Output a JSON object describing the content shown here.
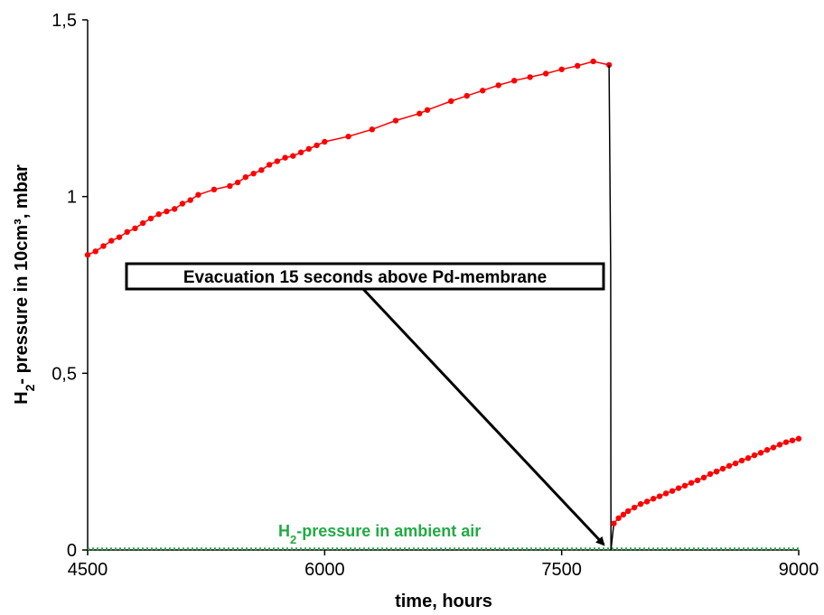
{
  "chart_data": {
    "type": "line",
    "xlabel": "time, hours",
    "ylabel_parts": [
      "H",
      "2",
      "- pressure in 10cm³, mbar"
    ],
    "xlim": [
      4500,
      9000
    ],
    "ylim": [
      0,
      1.5
    ],
    "x_ticks": [
      4500,
      6000,
      7500,
      9000
    ],
    "x_tick_labels": [
      "4500",
      "6000",
      "7500",
      "9000"
    ],
    "y_ticks": [
      0,
      0.5,
      1,
      1.5
    ],
    "y_tick_labels": [
      "0",
      "0,5",
      "1",
      "1,5"
    ],
    "grid": false,
    "colors": {
      "measured": "#ff0000",
      "drop_line": "#000000",
      "ambient": "#22aa44"
    },
    "series": [
      {
        "key": "before",
        "x": [
          4500,
          4550,
          4600,
          4650,
          4700,
          4750,
          4800,
          4850,
          4900,
          4950,
          5000,
          5050,
          5100,
          5150,
          5200,
          5300,
          5400,
          5450,
          5500,
          5550,
          5600,
          5650,
          5700,
          5750,
          5800,
          5850,
          5900,
          5950,
          6000,
          6150,
          6300,
          6450,
          6600,
          6650,
          6800,
          6900,
          7000,
          7100,
          7200,
          7300,
          7400,
          7500,
          7600,
          7700,
          7800
        ],
        "y": [
          0.835,
          0.845,
          0.86,
          0.875,
          0.885,
          0.9,
          0.91,
          0.925,
          0.938,
          0.95,
          0.958,
          0.965,
          0.98,
          0.99,
          1.005,
          1.02,
          1.03,
          1.04,
          1.055,
          1.065,
          1.075,
          1.09,
          1.1,
          1.11,
          1.115,
          1.125,
          1.135,
          1.145,
          1.155,
          1.17,
          1.19,
          1.215,
          1.235,
          1.245,
          1.27,
          1.285,
          1.3,
          1.315,
          1.328,
          1.338,
          1.348,
          1.36,
          1.37,
          1.3825,
          1.3725
        ]
      },
      {
        "key": "drop",
        "x": [
          7800,
          7810,
          7812,
          7830
        ],
        "y": [
          1.3725,
          0.8,
          0.0,
          0.075
        ]
      },
      {
        "key": "after",
        "x": [
          7830,
          7860,
          7890,
          7920,
          7960,
          8000,
          8040,
          8080,
          8120,
          8160,
          8200,
          8240,
          8280,
          8320,
          8360,
          8400,
          8440,
          8480,
          8520,
          8560,
          8600,
          8640,
          8680,
          8720,
          8760,
          8800,
          8840,
          8880,
          8920,
          8960,
          9000
        ],
        "y": [
          0.075,
          0.09,
          0.1,
          0.11,
          0.12,
          0.13,
          0.137,
          0.145,
          0.152,
          0.16,
          0.167,
          0.175,
          0.182,
          0.19,
          0.197,
          0.205,
          0.215,
          0.222,
          0.23,
          0.238,
          0.245,
          0.253,
          0.26,
          0.268,
          0.275,
          0.283,
          0.29,
          0.298,
          0.305,
          0.31,
          0.315
        ]
      },
      {
        "key": "ambient",
        "x": [
          4500,
          9000
        ],
        "y": [
          0.003,
          0.003
        ]
      }
    ],
    "annotations": [
      {
        "key": "evacuation",
        "text": "Evacuation 15 seconds above Pd-membrane",
        "arrow_to": [
          7812,
          0.0
        ]
      },
      {
        "key": "ambient",
        "text_parts": [
          "H",
          "2",
          "-pressure in ambient air"
        ]
      }
    ]
  }
}
